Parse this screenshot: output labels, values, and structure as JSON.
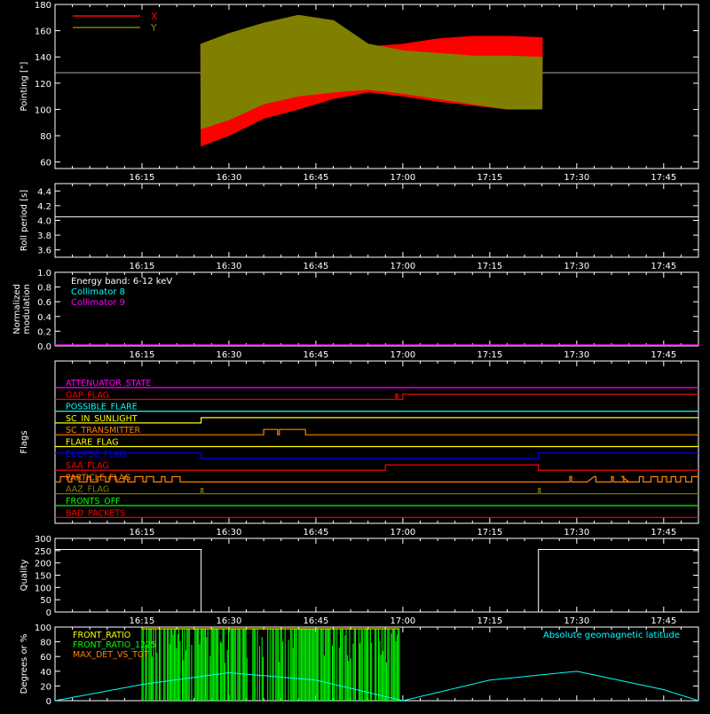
{
  "x_time_labels": [
    "16:15",
    "16:30",
    "16:45",
    "17:00",
    "17:15",
    "17:30",
    "17:45"
  ],
  "chart_data": [
    {
      "id": "pointing",
      "type": "line",
      "ylabel": "Pointing [\"]",
      "ylim": [
        55,
        180
      ],
      "yticks": [
        "60",
        "80",
        "100",
        "120",
        "140",
        "160",
        "180"
      ],
      "reference_line": 128,
      "series": [
        {
          "name": "X",
          "color": "#ff0000",
          "x": [
            16.42,
            16.5,
            16.6,
            16.7,
            16.8,
            16.9,
            17.0,
            17.1,
            17.2,
            17.3,
            17.4
          ],
          "upper": [
            150,
            150,
            158,
            162,
            156,
            148,
            150,
            154,
            156,
            156,
            155
          ],
          "lower": [
            72,
            80,
            93,
            100,
            108,
            113,
            110,
            106,
            103,
            100,
            100
          ]
        },
        {
          "name": "Y",
          "color": "#808000",
          "x": [
            16.42,
            16.5,
            16.6,
            16.7,
            16.8,
            16.9,
            17.0,
            17.1,
            17.2,
            17.3,
            17.4
          ],
          "upper": [
            150,
            158,
            166,
            172,
            168,
            150,
            145,
            143,
            141,
            141,
            140
          ],
          "lower": [
            85,
            92,
            104,
            110,
            113,
            115,
            112,
            108,
            104,
            100,
            100
          ]
        }
      ]
    },
    {
      "id": "roll",
      "type": "line",
      "ylabel": "Roll period [s]",
      "ylim": [
        3.5,
        4.5
      ],
      "yticks": [
        "3.6",
        "3.8",
        "4.0",
        "4.2",
        "4.4"
      ],
      "series": [
        {
          "name": "",
          "color": "#ffffff",
          "y": 4.05
        }
      ]
    },
    {
      "id": "modulation",
      "type": "line",
      "ylabel": "Normalized modulation",
      "ylabel_lines": [
        "Normalized",
        "modulation"
      ],
      "ylim": [
        0,
        1
      ],
      "yticks": [
        "0.0",
        "0.2",
        "0.4",
        "0.6",
        "0.8",
        "1.0"
      ],
      "legend": [
        {
          "label": "Energy band: 6-12 keV",
          "color": "#ffffff"
        },
        {
          "label": "Collimator 8",
          "color": "#00ffff"
        },
        {
          "label": "Collimator 9",
          "color": "#ff00ff"
        }
      ],
      "series": [
        {
          "name": "Collimator 9",
          "color": "#ff00ff",
          "y": 0.0
        }
      ]
    },
    {
      "id": "flags",
      "type": "line",
      "ylabel": "Flags",
      "flags": [
        {
          "name": "ATTENUATOR_STATE",
          "color": "#ff00ff"
        },
        {
          "name": "GAP_FLAG",
          "color": "#ff0000"
        },
        {
          "name": "POSSIBLE_FLARE",
          "color": "#00ffff"
        },
        {
          "name": "SC_IN_SUNLIGHT",
          "color": "#ffff00"
        },
        {
          "name": "SC_TRANSMITTER",
          "color": "#ff8000"
        },
        {
          "name": "FLARE_FLAG",
          "color": "#ffff00"
        },
        {
          "name": "ECLIPSE_FLAG",
          "color": "#0000ff"
        },
        {
          "name": "SAA_FLAG",
          "color": "#ff0000"
        },
        {
          "name": "PARTICLE_FLAG",
          "color": "#ff8000"
        },
        {
          "name": "AAZ_FLAG",
          "color": "#808000"
        },
        {
          "name": "FRONTS_OFF",
          "color": "#00ff00"
        },
        {
          "name": "BAD_PACKETS",
          "color": "#ff0000"
        }
      ]
    },
    {
      "id": "quality",
      "type": "line",
      "ylabel": "Quality",
      "ylim": [
        0,
        300
      ],
      "yticks": [
        "0",
        "50",
        "100",
        "150",
        "200",
        "250",
        "300"
      ],
      "series": [
        {
          "name": "",
          "color": "#ffffff",
          "segments": [
            [
              16.0,
              16.42,
              255
            ],
            [
              16.42,
              17.39,
              0
            ],
            [
              17.39,
              17.85,
              255
            ]
          ]
        }
      ]
    },
    {
      "id": "degrees",
      "type": "line",
      "ylabel": "Degrees or %",
      "ylim": [
        0,
        100
      ],
      "yticks": [
        "0",
        "20",
        "40",
        "60",
        "80",
        "100"
      ],
      "legend": [
        {
          "label": "FRONT_RATIO",
          "color": "#ffff00"
        },
        {
          "label": "FRONT_RATIO_1225",
          "color": "#00ff00"
        },
        {
          "label": "MAX_DET_VS_TOT",
          "color": "#ff8000"
        }
      ],
      "annotation": {
        "label": "Absolute geomagnetic latitude",
        "color": "#00ffff"
      },
      "series": [
        {
          "name": "Absolute geomagnetic latitude",
          "color": "#00ffff",
          "x": [
            16.0,
            16.25,
            16.5,
            16.75,
            17.0,
            17.25,
            17.5,
            17.75,
            17.85
          ],
          "y": [
            0,
            22,
            38,
            28,
            0,
            28,
            40,
            15,
            0
          ]
        },
        {
          "name": "FRONT_RATIO_1225",
          "color": "#00ff00",
          "range": [
            16.25,
            16.99
          ],
          "max": 100
        }
      ]
    }
  ]
}
